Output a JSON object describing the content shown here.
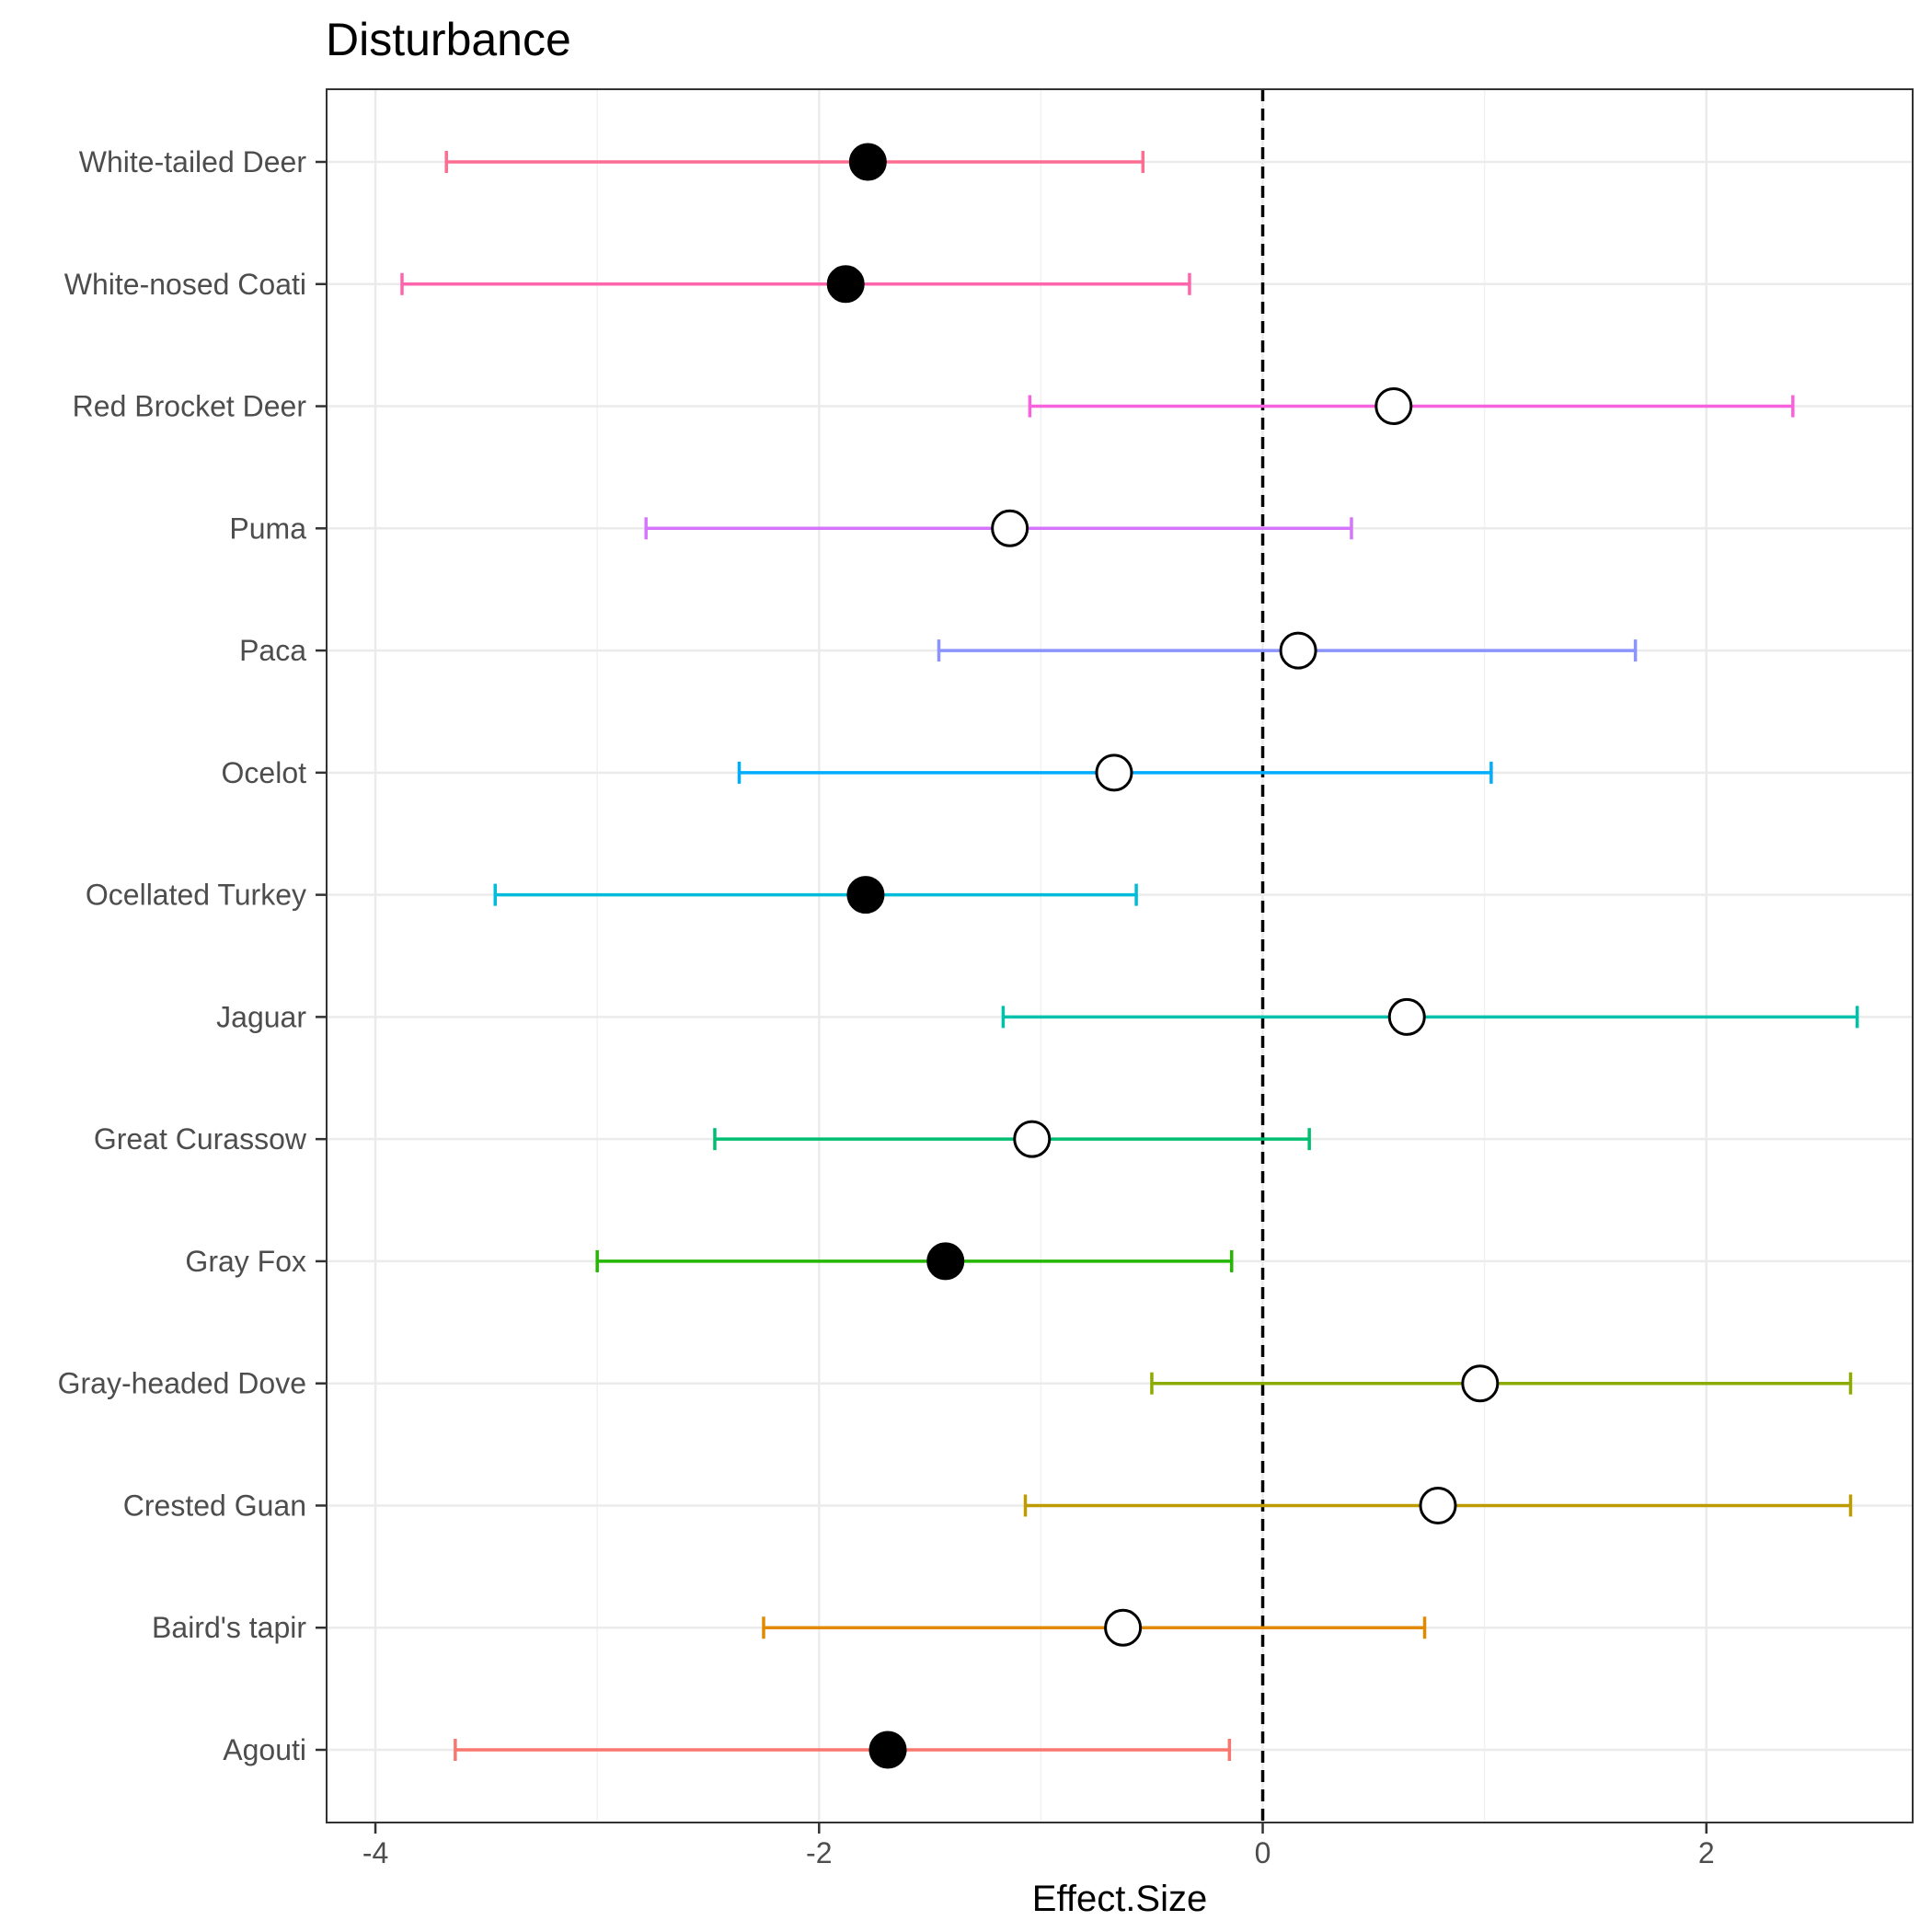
{
  "chart_data": {
    "type": "forest",
    "title": "Disturbance",
    "xlabel": "Effect.Size",
    "ylabel": "",
    "xlim": [
      -4.22,
      2.93
    ],
    "xticks": [
      -4,
      -2,
      0,
      2
    ],
    "xtick_labels": [
      "-4",
      "-2",
      "0",
      "2"
    ],
    "reference_line": 0,
    "grid": true,
    "species": [
      {
        "label": "Agouti",
        "estimate": -1.69,
        "lower": -3.64,
        "upper": -0.15,
        "significant": true,
        "color": "#F8766D"
      },
      {
        "label": "Baird's tapir",
        "estimate": -0.63,
        "lower": -2.25,
        "upper": 0.73,
        "significant": false,
        "color": "#E18A00"
      },
      {
        "label": "Crested Guan",
        "estimate": 0.79,
        "lower": -1.07,
        "upper": 2.65,
        "significant": false,
        "color": "#BE9C00"
      },
      {
        "label": "Gray-headed Dove",
        "estimate": 0.98,
        "lower": -0.5,
        "upper": 2.65,
        "significant": false,
        "color": "#8CAB00"
      },
      {
        "label": "Gray Fox",
        "estimate": -1.43,
        "lower": -3.0,
        "upper": -0.14,
        "significant": true,
        "color": "#24B700"
      },
      {
        "label": "Great Curassow",
        "estimate": -1.04,
        "lower": -2.47,
        "upper": 0.21,
        "significant": false,
        "color": "#00BE70"
      },
      {
        "label": "Jaguar",
        "estimate": 0.65,
        "lower": -1.17,
        "upper": 2.68,
        "significant": false,
        "color": "#00C1AB"
      },
      {
        "label": "Ocellated Turkey",
        "estimate": -1.79,
        "lower": -3.46,
        "upper": -0.57,
        "significant": true,
        "color": "#00BBDA"
      },
      {
        "label": "Ocelot",
        "estimate": -0.67,
        "lower": -2.36,
        "upper": 1.03,
        "significant": false,
        "color": "#00ACFC"
      },
      {
        "label": "Paca",
        "estimate": 0.16,
        "lower": -1.46,
        "upper": 1.68,
        "significant": false,
        "color": "#8B93FF"
      },
      {
        "label": "Puma",
        "estimate": -1.14,
        "lower": -2.78,
        "upper": 0.4,
        "significant": false,
        "color": "#D575FE"
      },
      {
        "label": "Red Brocket Deer",
        "estimate": 0.59,
        "lower": -1.05,
        "upper": 2.39,
        "significant": false,
        "color": "#F962DD"
      },
      {
        "label": "White-nosed Coati",
        "estimate": -1.88,
        "lower": -3.88,
        "upper": -0.33,
        "significant": true,
        "color": "#FF65AC"
      },
      {
        "label": "White-tailed Deer",
        "estimate": -1.78,
        "lower": -3.68,
        "upper": -0.54,
        "significant": true,
        "color": "#FF6C91"
      }
    ]
  }
}
